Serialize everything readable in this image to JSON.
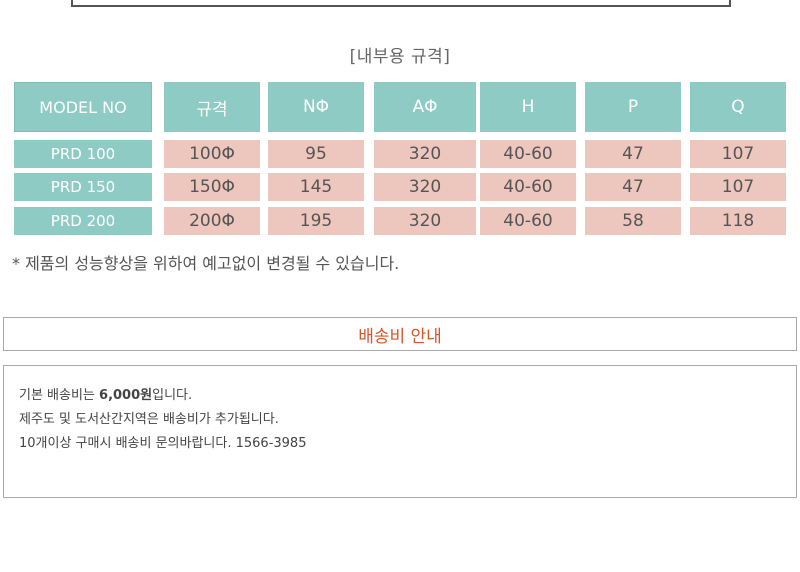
{
  "section_title": "[내부용 규격]",
  "table": {
    "headers": [
      "MODEL NO",
      "규격",
      "NΦ",
      "AΦ",
      "H",
      "P",
      "Q"
    ],
    "rows": [
      [
        "PRD 100",
        "100Φ",
        "95",
        "320",
        "40-60",
        "47",
        "107"
      ],
      [
        "PRD 150",
        "150Φ",
        "145",
        "320",
        "40-60",
        "47",
        "107"
      ],
      [
        "PRD 200",
        "200Φ",
        "195",
        "320",
        "40-60",
        "58",
        "118"
      ]
    ]
  },
  "footnote": "* 제품의 성능향상을 위하여 예고없이 변경될 수 있습니다.",
  "shipping": {
    "title": "배송비 안내",
    "line1_pre": "기본 배송비는 ",
    "line1_bold": "6,000원",
    "line1_post": "입니다.",
    "line2": "제주도 및 도서산간지역은 배송비가 추가됩니다.",
    "line3": "10개이상 구매시 배송비 문의바랍니다. 1566-3985"
  },
  "colors": {
    "teal": "#8ecbc4",
    "pink": "#edc6bd",
    "accent_orange": "#d2572b"
  }
}
